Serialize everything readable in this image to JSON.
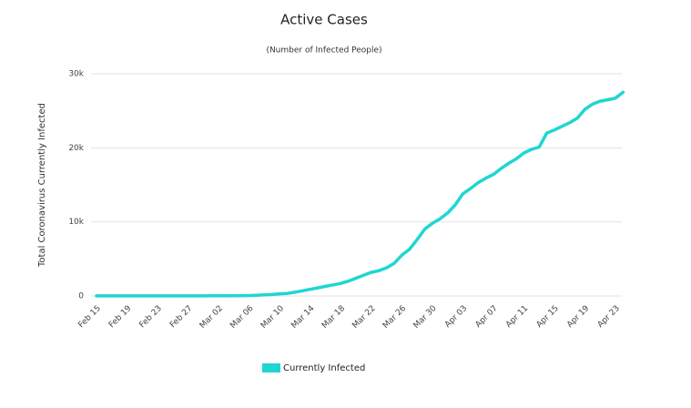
{
  "chart_data": {
    "type": "line",
    "title": "Active Cases",
    "subtitle": "(Number of Infected People)",
    "y_label": "Total Coronavirus Currently Infected",
    "categories": [
      "Feb 15",
      null,
      null,
      null,
      "Feb 19",
      null,
      null,
      null,
      "Feb 23",
      null,
      null,
      null,
      "Feb 27",
      null,
      null,
      null,
      "Mar 02",
      null,
      null,
      null,
      "Mar 06",
      null,
      null,
      null,
      "Mar 10",
      null,
      null,
      null,
      "Mar 14",
      null,
      null,
      null,
      "Mar 18",
      null,
      null,
      null,
      "Mar 22",
      null,
      null,
      null,
      "Mar 26",
      null,
      null,
      null,
      "Mar 30",
      null,
      null,
      null,
      "Apr 03",
      null,
      null,
      null,
      "Apr 07",
      null,
      null,
      null,
      "Apr 11",
      null,
      null,
      null,
      "Apr 15",
      null,
      null,
      null,
      "Apr 19",
      null,
      null,
      null,
      "Apr 23",
      null
    ],
    "series": [
      {
        "name": "Currently Infected",
        "color": "#1fd6d2",
        "values": [
          10,
          10,
          10,
          10,
          10,
          10,
          10,
          10,
          10,
          10,
          10,
          10,
          10,
          10,
          10,
          20,
          20,
          30,
          40,
          50,
          60,
          100,
          150,
          200,
          300,
          350,
          500,
          700,
          900,
          1100,
          1300,
          1500,
          1700,
          2000,
          2400,
          2800,
          3200,
          3400,
          3800,
          4400,
          5500,
          6300,
          7600,
          9000,
          9800,
          10400,
          11200,
          12300,
          13800,
          14500,
          15300,
          15900,
          16400,
          17200,
          17900,
          18500,
          19300,
          19800,
          20100,
          22000,
          22400,
          22900,
          23400,
          24000,
          25200,
          25900,
          26300,
          26500,
          26700,
          27500
        ]
      }
    ],
    "ylim": [
      0,
      30000
    ],
    "yticks": [
      0,
      {
        "value": 10000,
        "label": "10k"
      },
      {
        "value": 20000,
        "label": "20k"
      },
      {
        "value": 30000,
        "label": "30k"
      }
    ],
    "grid": true
  }
}
